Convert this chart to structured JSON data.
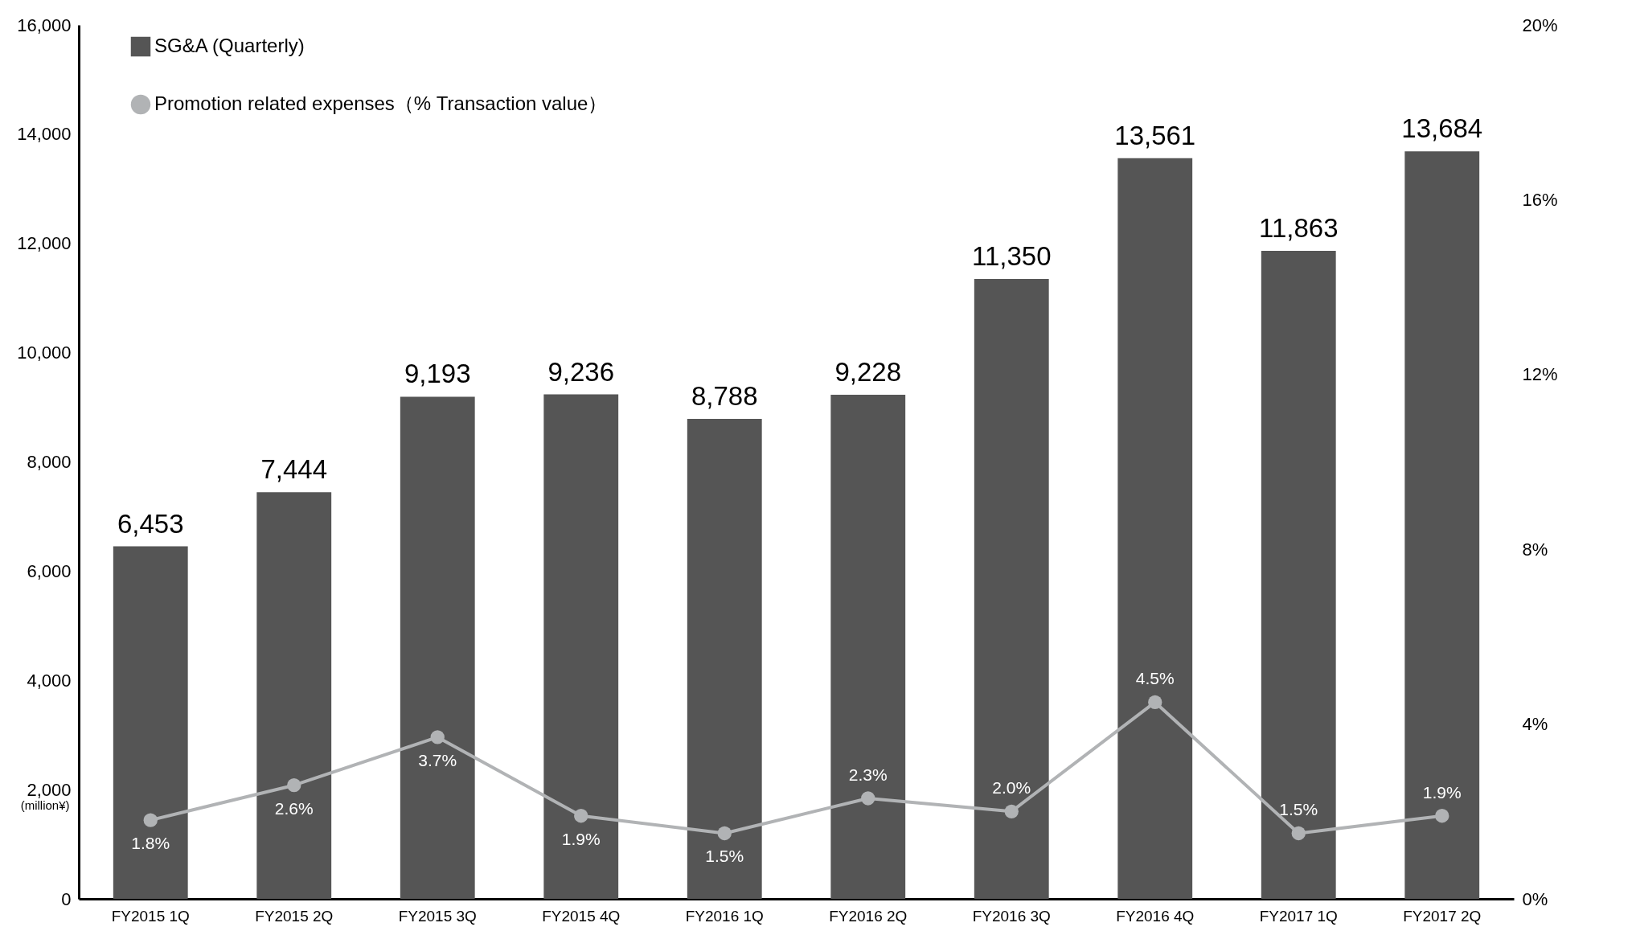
{
  "chart_data": {
    "type": "bar",
    "categories": [
      "FY2015 1Q",
      "FY2015 2Q",
      "FY2015 3Q",
      "FY2015 4Q",
      "FY2016 1Q",
      "FY2016 2Q",
      "FY2016 3Q",
      "FY2016 4Q",
      "FY2017 1Q",
      "FY2017 2Q"
    ],
    "series": [
      {
        "name": "SG&A (Quarterly)",
        "color": "#555555",
        "values": [
          6453,
          7444,
          9193,
          9236,
          8788,
          9228,
          11350,
          13561,
          11863,
          13684
        ],
        "value_labels": [
          "6,453",
          "7,444",
          "9,193",
          "9,236",
          "8,788",
          "9,228",
          "11,350",
          "13,561",
          "11,863",
          "13,684"
        ]
      },
      {
        "name": "Promotion related expenses（% Transaction value）",
        "type": "line",
        "axis": "y2",
        "color": "#b1b3b5",
        "marker": "circle",
        "values": [
          1.8,
          2.6,
          3.7,
          1.9,
          1.5,
          2.3,
          2.0,
          4.5,
          1.5,
          1.9
        ],
        "value_labels": [
          "1.8%",
          "2.6%",
          "3.7%",
          "1.9%",
          "1.5%",
          "2.3%",
          "2.0%",
          "4.5%",
          "1.5%",
          "1.9%"
        ]
      }
    ],
    "ylabel": "(million¥)",
    "ylim": [
      0,
      16000
    ],
    "yticks": [
      {
        "value": 0,
        "label": "0"
      },
      {
        "value": 2000,
        "label": "2,000"
      },
      {
        "value": 4000,
        "label": "4,000"
      },
      {
        "value": 6000,
        "label": "6,000"
      },
      {
        "value": 8000,
        "label": "8,000"
      },
      {
        "value": 10000,
        "label": "10,000"
      },
      {
        "value": 12000,
        "label": "12,000"
      },
      {
        "value": 14000,
        "label": "14,000"
      },
      {
        "value": 16000,
        "label": "16,000"
      }
    ],
    "y2lim": [
      0,
      20
    ],
    "y2ticks": [
      {
        "value": 0,
        "label": "0%"
      },
      {
        "value": 4,
        "label": "4%"
      },
      {
        "value": 8,
        "label": "8%"
      },
      {
        "value": 12,
        "label": "12%"
      },
      {
        "value": 16,
        "label": "16%"
      },
      {
        "value": 20,
        "label": "20%"
      }
    ],
    "legend": "top left"
  }
}
